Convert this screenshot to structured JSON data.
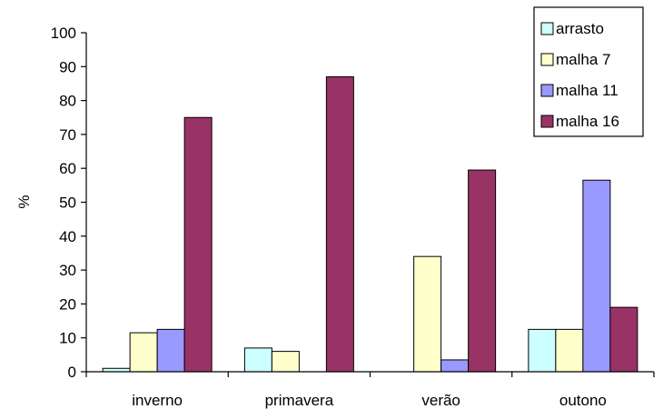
{
  "chart_data": {
    "type": "bar",
    "categories": [
      "inverno",
      "primavera",
      "verão",
      "outono"
    ],
    "series": [
      {
        "name": "arrasto",
        "color": "#ccffff",
        "values": [
          1,
          7,
          0,
          12.5
        ]
      },
      {
        "name": "malha 7",
        "color": "#ffffcc",
        "values": [
          11.5,
          6,
          34,
          12.5
        ]
      },
      {
        "name": "malha 11",
        "color": "#9999ff",
        "values": [
          12.5,
          0,
          3.5,
          56.5
        ]
      },
      {
        "name": "malha 16",
        "color": "#993366",
        "values": [
          75,
          87,
          59.5,
          19
        ]
      }
    ],
    "title": "",
    "xlabel": "",
    "ylabel": "%",
    "ylim": [
      0,
      100
    ],
    "yticks": [
      0,
      10,
      20,
      30,
      40,
      50,
      60,
      70,
      80,
      90,
      100
    ],
    "grid": false,
    "legend": "top-right"
  }
}
